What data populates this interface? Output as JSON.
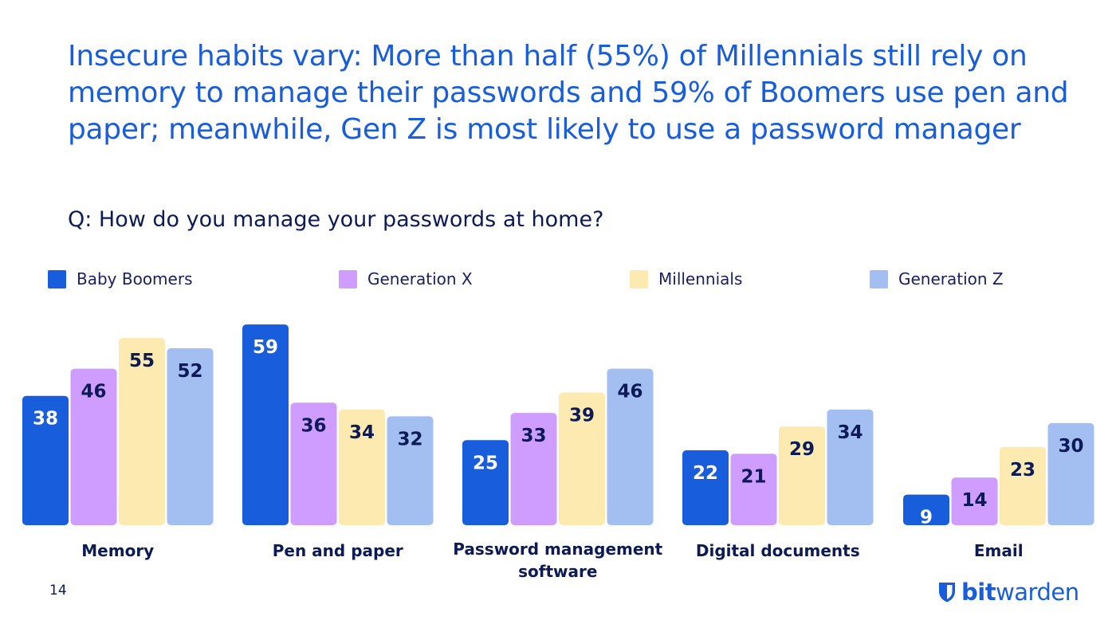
{
  "headline": "Insecure habits vary: More than half (55%) of Millennials still rely on memory to manage their passwords and 59% of Boomers use pen and paper; meanwhile, Gen Z is most likely to use a password manager",
  "question": "Q: How do you manage your passwords at home?",
  "page_number": "14",
  "brand": {
    "part1": "bit",
    "part2": "warden",
    "icon": "shield-icon"
  },
  "colors": {
    "headline": "#175ddc",
    "text": "#0c1a56",
    "baby_boomers": "#175ddc",
    "generation_x": "#cf9cff",
    "millennials": "#fdeab0",
    "generation_z": "#a3bef0"
  },
  "chart_data": {
    "type": "bar",
    "title": "",
    "xlabel": "",
    "ylabel": "",
    "ylim": [
      0,
      60
    ],
    "grid": false,
    "legend_position": "top",
    "categories": [
      "Memory",
      "Pen and paper",
      "Password management software",
      "Digital documents",
      "Email"
    ],
    "category_lines": [
      [
        "Memory"
      ],
      [
        "Pen and paper"
      ],
      [
        "Password management",
        "software"
      ],
      [
        "Digital documents"
      ],
      [
        "Email"
      ]
    ],
    "series": [
      {
        "name": "Baby Boomers",
        "color": "#175ddc",
        "label_color": "#ffffff",
        "values": [
          38,
          59,
          25,
          22,
          9
        ]
      },
      {
        "name": "Generation X",
        "color": "#cf9cff",
        "label_color": "#0c1a56",
        "values": [
          46,
          36,
          33,
          21,
          14
        ]
      },
      {
        "name": "Millennials",
        "color": "#fdeab0",
        "label_color": "#0c1a56",
        "values": [
          55,
          34,
          39,
          29,
          23
        ]
      },
      {
        "name": "Generation Z",
        "color": "#a3bef0",
        "label_color": "#0c1a56",
        "values": [
          52,
          32,
          46,
          34,
          30
        ]
      }
    ]
  }
}
